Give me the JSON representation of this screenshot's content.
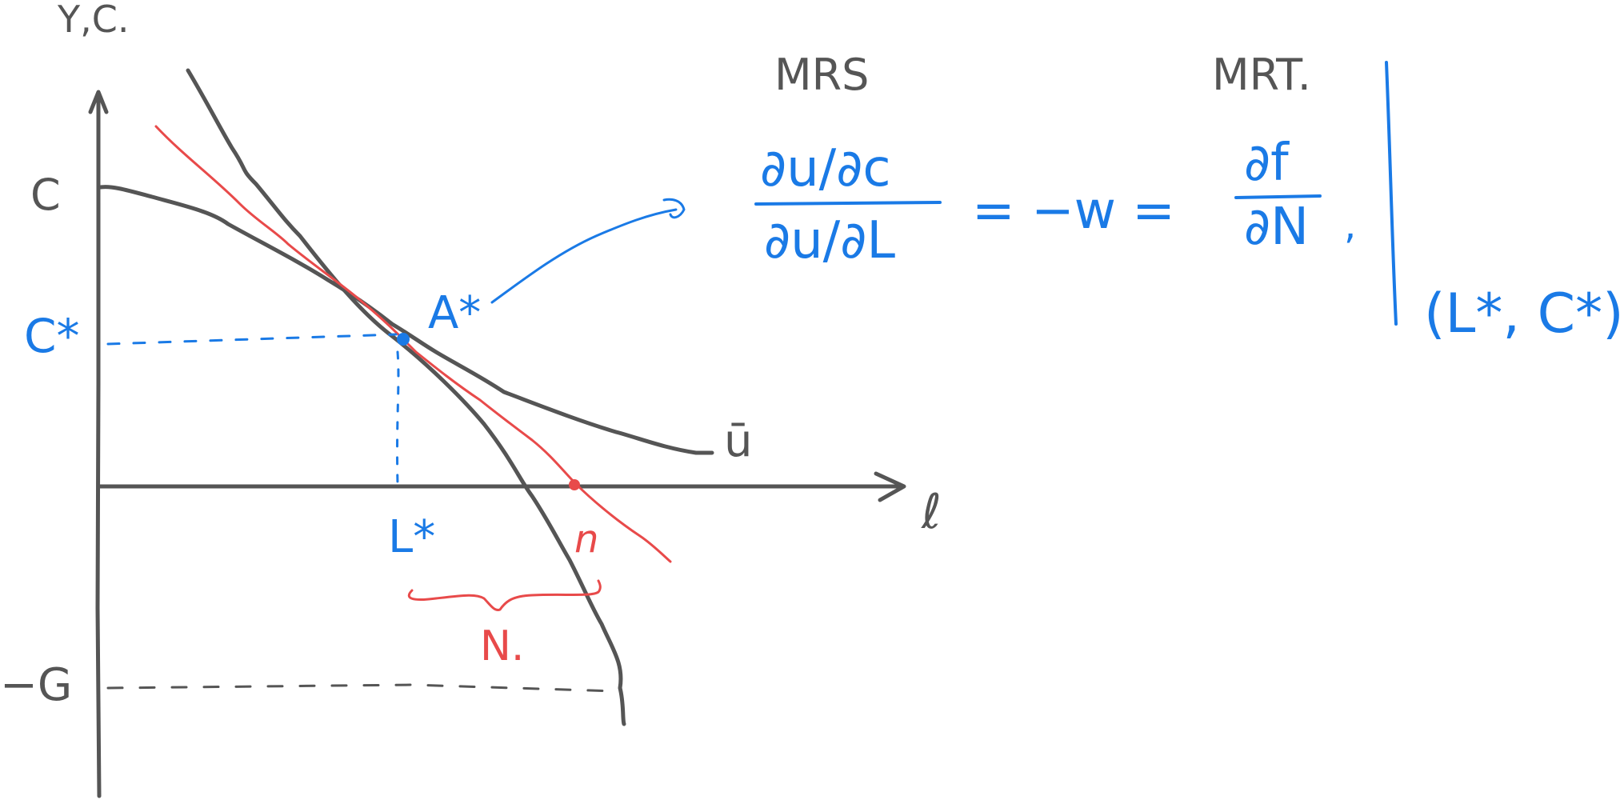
{
  "colors": {
    "axis": "#555555",
    "ink_blue": "#1a7ae6",
    "ink_red": "#e84a4a"
  },
  "axes": {
    "y_label": "Y,C.",
    "x_label": "ℓ"
  },
  "y_ticks": {
    "c": "C",
    "c_star": "C*",
    "neg_g": "−G"
  },
  "x_ticks": {
    "l_star": "L*",
    "n": "n"
  },
  "labels": {
    "point": "A*",
    "indifference_curve": "ū",
    "n_bracket": "N."
  },
  "equation": {
    "mrs_title": "MRS",
    "mrt_title": "MRT.",
    "lhs_numerator": "∂u/∂c",
    "lhs_denominator": "∂u/∂L",
    "middle": "= −w =",
    "rhs_numerator": "∂f",
    "rhs_denominator": "∂N",
    "trailing": ",",
    "evaluated_at": "(L*, C*)"
  }
}
